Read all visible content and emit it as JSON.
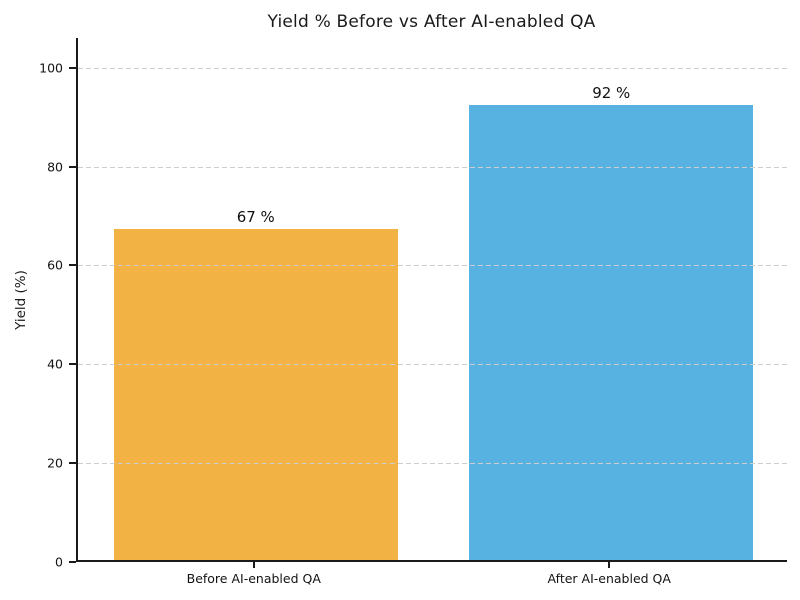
{
  "chart_data": {
    "type": "bar",
    "title": "Yield % Before vs After AI-enabled QA",
    "categories": [
      "Before AI-enabled QA",
      "After AI-enabled QA"
    ],
    "values": [
      67,
      92
    ],
    "value_labels": [
      "67 %",
      "92 %"
    ],
    "bar_colors": [
      "#F2B344",
      "#57B2E1"
    ],
    "xlabel": "",
    "ylabel": "Yield (%)",
    "ylim": [
      0,
      106
    ],
    "yticks": [
      0,
      20,
      40,
      60,
      80,
      100
    ],
    "ytick_labels": [
      "0",
      "20",
      "40",
      "60",
      "80",
      "100"
    ],
    "grid": "horizontal-dashed",
    "grid_color": "#cdcdcd",
    "legend": "none",
    "background_color": "#ffffff",
    "text_color": "#1a1a1a"
  }
}
